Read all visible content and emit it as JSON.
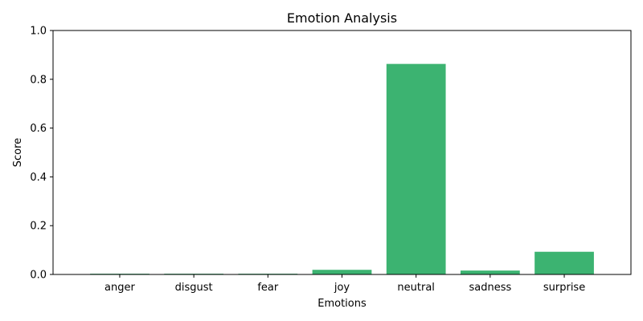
{
  "chart_data": {
    "type": "bar",
    "title": "Emotion Analysis",
    "xlabel": "Emotions",
    "ylabel": "Score",
    "categories": [
      "anger",
      "disgust",
      "fear",
      "joy",
      "neutral",
      "sadness",
      "surprise"
    ],
    "values": [
      0.003,
      0.003,
      0.003,
      0.019,
      0.863,
      0.016,
      0.093
    ],
    "ylim": [
      0,
      1
    ],
    "yticks": [
      0.0,
      0.2,
      0.4,
      0.6,
      0.8,
      1.0
    ],
    "ytick_labels": [
      "0.0",
      "0.2",
      "0.4",
      "0.6",
      "0.8",
      "1.0"
    ],
    "bar_color": "#3cb371",
    "grid": false,
    "legend": "none"
  }
}
